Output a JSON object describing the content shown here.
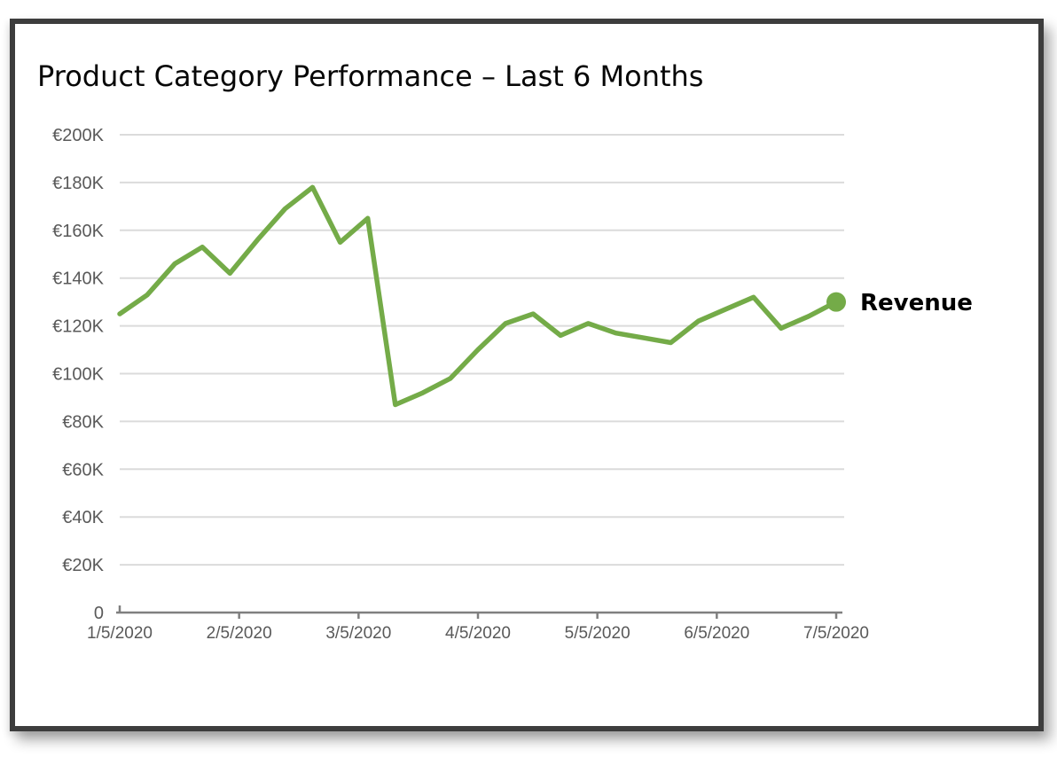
{
  "frame": {
    "background": "#ffffff",
    "border_color": "#3d3d3d"
  },
  "chart_data": {
    "type": "line",
    "title": "Product Category Performance – Last 6 Months",
    "x": [
      "1/5/2020",
      "1/12/2020",
      "1/19/2020",
      "1/26/2020",
      "2/2/2020",
      "2/9/2020",
      "2/16/2020",
      "2/23/2020",
      "3/1/2020",
      "3/8/2020",
      "3/15/2020",
      "3/22/2020",
      "3/29/2020",
      "4/5/2020",
      "4/12/2020",
      "4/19/2020",
      "4/26/2020",
      "5/3/2020",
      "5/10/2020",
      "5/17/2020",
      "5/24/2020",
      "5/31/2020",
      "6/7/2020",
      "6/14/2020",
      "6/21/2020",
      "6/28/2020",
      "7/5/2020"
    ],
    "series": [
      {
        "name": "Revenue",
        "unit": "EUR thousands",
        "values": [
          125,
          133,
          146,
          153,
          142,
          156,
          169,
          178,
          155,
          165,
          87,
          92,
          98,
          110,
          121,
          125,
          116,
          121,
          117,
          115,
          113,
          122,
          127,
          132,
          119,
          124,
          130
        ]
      }
    ],
    "y_axis": {
      "min": 0,
      "max": 200,
      "unit": "EUR thousands",
      "ticks": [
        {
          "label": "€200K",
          "value": 200
        },
        {
          "label": "€180K",
          "value": 180
        },
        {
          "label": "€160K",
          "value": 160
        },
        {
          "label": "€140K",
          "value": 140
        },
        {
          "label": "€120K",
          "value": 120
        },
        {
          "label": "€100K",
          "value": 100
        },
        {
          "label": "€80K",
          "value": 80
        },
        {
          "label": "€60K",
          "value": 60
        },
        {
          "label": "€40K",
          "value": 40
        },
        {
          "label": "€20K",
          "value": 20
        },
        {
          "label": "0",
          "value": 0
        }
      ]
    },
    "x_axis": {
      "tick_labels": [
        "1/5/2020",
        "2/5/2020",
        "3/5/2020",
        "4/5/2020",
        "5/5/2020",
        "6/5/2020",
        "7/5/2020"
      ]
    },
    "grid": "horizontal",
    "legend": {
      "label": "Revenue",
      "position": "right-of-last-point"
    },
    "colors": {
      "line": "#74ab48",
      "marker": "#74ab48",
      "gridline": "#dbdbdb",
      "axis_line": "#7f7f7f",
      "tick_label": "#595959",
      "title": "#070707",
      "legend_text": "#000000"
    }
  }
}
